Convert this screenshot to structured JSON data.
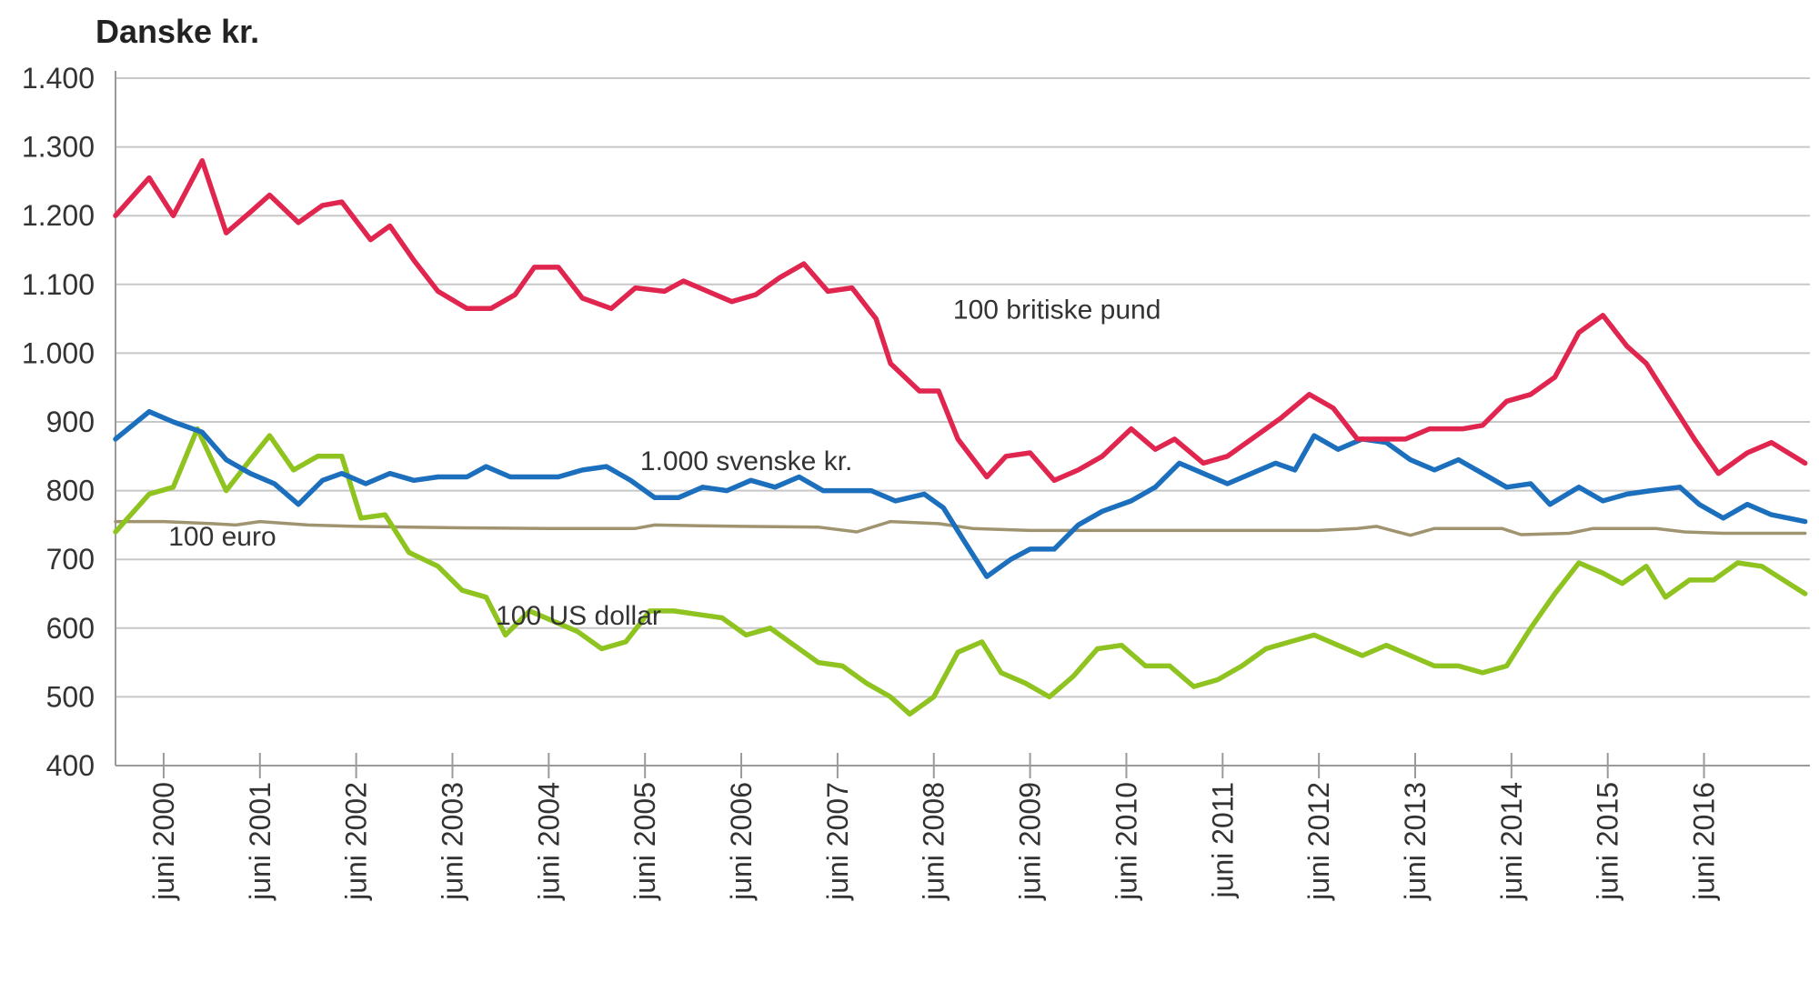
{
  "chart_data": {
    "type": "line",
    "title": "Danske kr.",
    "xlabel": "",
    "ylabel": "",
    "ylim": [
      400,
      1400
    ],
    "yticks": [
      400,
      500,
      600,
      700,
      800,
      900,
      1000,
      1100,
      1200,
      1300,
      1400
    ],
    "ytick_labels": [
      "400",
      "500",
      "600",
      "700",
      "800",
      "900",
      "1.000",
      "1.100",
      "1.200",
      "1.300",
      "1.400"
    ],
    "x_range": [
      1999.5,
      2017.1
    ],
    "x_ticks": [
      2000,
      2001,
      2002,
      2003,
      2004,
      2005,
      2006,
      2007,
      2008,
      2009,
      2010,
      2011,
      2012,
      2013,
      2014,
      2015,
      2016
    ],
    "xtick_labels": [
      "juni 2000",
      "juni 2001",
      "juni 2002",
      "juni 2003",
      "juni 2004",
      "juni 2005",
      "juni 2006",
      "juni 2007",
      "juni 2008",
      "juni 2009",
      "juni 2010",
      "juni 2011",
      "juni 2012",
      "juni 2013",
      "juni 2014",
      "juni 2015",
      "juni 2016"
    ],
    "grid": true,
    "series": [
      {
        "name": "100 britiske pund",
        "color": "#e0254f",
        "label_anchor": [
          2008.2,
          1050
        ],
        "points": [
          [
            1999.5,
            1200
          ],
          [
            1999.85,
            1255
          ],
          [
            2000.1,
            1200
          ],
          [
            2000.4,
            1280
          ],
          [
            2000.65,
            1175
          ],
          [
            2000.9,
            1205
          ],
          [
            2001.1,
            1230
          ],
          [
            2001.4,
            1190
          ],
          [
            2001.65,
            1215
          ],
          [
            2001.85,
            1220
          ],
          [
            2002.15,
            1165
          ],
          [
            2002.35,
            1185
          ],
          [
            2002.6,
            1135
          ],
          [
            2002.85,
            1090
          ],
          [
            2003.15,
            1065
          ],
          [
            2003.4,
            1065
          ],
          [
            2003.65,
            1085
          ],
          [
            2003.85,
            1125
          ],
          [
            2004.1,
            1125
          ],
          [
            2004.35,
            1080
          ],
          [
            2004.65,
            1065
          ],
          [
            2004.9,
            1095
          ],
          [
            2005.2,
            1090
          ],
          [
            2005.4,
            1105
          ],
          [
            2005.65,
            1090
          ],
          [
            2005.9,
            1075
          ],
          [
            2006.15,
            1085
          ],
          [
            2006.4,
            1110
          ],
          [
            2006.65,
            1130
          ],
          [
            2006.9,
            1090
          ],
          [
            2007.15,
            1095
          ],
          [
            2007.4,
            1050
          ],
          [
            2007.55,
            985
          ],
          [
            2007.85,
            945
          ],
          [
            2008.05,
            945
          ],
          [
            2008.25,
            875
          ],
          [
            2008.55,
            820
          ],
          [
            2008.75,
            850
          ],
          [
            2009.0,
            855
          ],
          [
            2009.25,
            815
          ],
          [
            2009.5,
            830
          ],
          [
            2009.75,
            850
          ],
          [
            2010.05,
            890
          ],
          [
            2010.3,
            860
          ],
          [
            2010.5,
            875
          ],
          [
            2010.8,
            840
          ],
          [
            2011.05,
            850
          ],
          [
            2011.3,
            875
          ],
          [
            2011.6,
            905
          ],
          [
            2011.9,
            940
          ],
          [
            2012.15,
            920
          ],
          [
            2012.4,
            875
          ],
          [
            2012.65,
            875
          ],
          [
            2012.9,
            875
          ],
          [
            2013.15,
            890
          ],
          [
            2013.5,
            890
          ],
          [
            2013.7,
            895
          ],
          [
            2013.95,
            930
          ],
          [
            2014.2,
            940
          ],
          [
            2014.45,
            965
          ],
          [
            2014.7,
            1030
          ],
          [
            2014.95,
            1055
          ],
          [
            2015.2,
            1010
          ],
          [
            2015.4,
            985
          ],
          [
            2015.65,
            930
          ],
          [
            2015.9,
            875
          ],
          [
            2016.15,
            825
          ],
          [
            2016.45,
            855
          ],
          [
            2016.7,
            870
          ],
          [
            2017.05,
            840
          ]
        ]
      },
      {
        "name": "1.000 svenske kr.",
        "color": "#1b6fbd",
        "label_anchor": [
          2004.95,
          830
        ],
        "points": [
          [
            1999.5,
            875
          ],
          [
            1999.85,
            915
          ],
          [
            2000.1,
            900
          ],
          [
            2000.4,
            885
          ],
          [
            2000.65,
            845
          ],
          [
            2000.9,
            825
          ],
          [
            2001.15,
            810
          ],
          [
            2001.4,
            780
          ],
          [
            2001.65,
            815
          ],
          [
            2001.85,
            825
          ],
          [
            2002.1,
            810
          ],
          [
            2002.35,
            825
          ],
          [
            2002.6,
            815
          ],
          [
            2002.85,
            820
          ],
          [
            2003.15,
            820
          ],
          [
            2003.35,
            835
          ],
          [
            2003.6,
            820
          ],
          [
            2003.85,
            820
          ],
          [
            2004.1,
            820
          ],
          [
            2004.35,
            830
          ],
          [
            2004.6,
            835
          ],
          [
            2004.85,
            815
          ],
          [
            2005.1,
            790
          ],
          [
            2005.35,
            790
          ],
          [
            2005.6,
            805
          ],
          [
            2005.85,
            800
          ],
          [
            2006.1,
            815
          ],
          [
            2006.35,
            805
          ],
          [
            2006.6,
            820
          ],
          [
            2006.85,
            800
          ],
          [
            2007.1,
            800
          ],
          [
            2007.35,
            800
          ],
          [
            2007.6,
            785
          ],
          [
            2007.9,
            795
          ],
          [
            2008.1,
            775
          ],
          [
            2008.3,
            730
          ],
          [
            2008.55,
            675
          ],
          [
            2008.8,
            700
          ],
          [
            2009.0,
            715
          ],
          [
            2009.25,
            715
          ],
          [
            2009.5,
            750
          ],
          [
            2009.75,
            770
          ],
          [
            2010.05,
            785
          ],
          [
            2010.3,
            805
          ],
          [
            2010.55,
            840
          ],
          [
            2010.8,
            825
          ],
          [
            2011.05,
            810
          ],
          [
            2011.3,
            825
          ],
          [
            2011.55,
            840
          ],
          [
            2011.75,
            830
          ],
          [
            2011.95,
            880
          ],
          [
            2012.2,
            860
          ],
          [
            2012.45,
            875
          ],
          [
            2012.7,
            870
          ],
          [
            2012.95,
            845
          ],
          [
            2013.2,
            830
          ],
          [
            2013.45,
            845
          ],
          [
            2013.7,
            825
          ],
          [
            2013.95,
            805
          ],
          [
            2014.2,
            810
          ],
          [
            2014.4,
            780
          ],
          [
            2014.7,
            805
          ],
          [
            2014.95,
            785
          ],
          [
            2015.2,
            795
          ],
          [
            2015.45,
            800
          ],
          [
            2015.75,
            805
          ],
          [
            2015.95,
            780
          ],
          [
            2016.2,
            760
          ],
          [
            2016.45,
            780
          ],
          [
            2016.7,
            765
          ],
          [
            2017.05,
            755
          ]
        ]
      },
      {
        "name": "100 euro",
        "color": "#a09370",
        "label_anchor": [
          2000.05,
          720
        ],
        "points": [
          [
            1999.5,
            755
          ],
          [
            2000.0,
            755
          ],
          [
            2000.5,
            752
          ],
          [
            2000.75,
            750
          ],
          [
            2001.0,
            755
          ],
          [
            2001.5,
            750
          ],
          [
            2002.0,
            748
          ],
          [
            2003.0,
            746
          ],
          [
            2004.0,
            745
          ],
          [
            2004.9,
            745
          ],
          [
            2005.1,
            750
          ],
          [
            2006.0,
            748
          ],
          [
            2006.8,
            747
          ],
          [
            2007.2,
            740
          ],
          [
            2007.55,
            755
          ],
          [
            2008.05,
            752
          ],
          [
            2008.4,
            745
          ],
          [
            2009.0,
            742
          ],
          [
            2010.0,
            742
          ],
          [
            2011.0,
            742
          ],
          [
            2012.0,
            742
          ],
          [
            2012.4,
            745
          ],
          [
            2012.6,
            748
          ],
          [
            2012.95,
            735
          ],
          [
            2013.2,
            745
          ],
          [
            2013.9,
            745
          ],
          [
            2014.1,
            736
          ],
          [
            2014.6,
            738
          ],
          [
            2014.85,
            745
          ],
          [
            2015.5,
            745
          ],
          [
            2015.8,
            740
          ],
          [
            2016.2,
            738
          ],
          [
            2017.05,
            738
          ]
        ]
      },
      {
        "name": "100 US dollar",
        "color": "#8fc31f",
        "label_anchor": [
          2003.45,
          605
        ],
        "points": [
          [
            1999.5,
            740
          ],
          [
            1999.85,
            795
          ],
          [
            2000.1,
            805
          ],
          [
            2000.35,
            890
          ],
          [
            2000.65,
            800
          ],
          [
            2000.9,
            845
          ],
          [
            2001.1,
            880
          ],
          [
            2001.35,
            830
          ],
          [
            2001.6,
            850
          ],
          [
            2001.85,
            850
          ],
          [
            2002.05,
            760
          ],
          [
            2002.3,
            765
          ],
          [
            2002.55,
            710
          ],
          [
            2002.85,
            690
          ],
          [
            2003.1,
            655
          ],
          [
            2003.35,
            645
          ],
          [
            2003.55,
            590
          ],
          [
            2003.8,
            625
          ],
          [
            2004.05,
            610
          ],
          [
            2004.3,
            595
          ],
          [
            2004.55,
            570
          ],
          [
            2004.8,
            580
          ],
          [
            2005.05,
            625
          ],
          [
            2005.3,
            625
          ],
          [
            2005.55,
            620
          ],
          [
            2005.8,
            615
          ],
          [
            2006.05,
            590
          ],
          [
            2006.3,
            600
          ],
          [
            2006.55,
            575
          ],
          [
            2006.8,
            550
          ],
          [
            2007.05,
            545
          ],
          [
            2007.3,
            520
          ],
          [
            2007.55,
            500
          ],
          [
            2007.75,
            475
          ],
          [
            2008.0,
            500
          ],
          [
            2008.25,
            565
          ],
          [
            2008.5,
            580
          ],
          [
            2008.7,
            535
          ],
          [
            2008.95,
            520
          ],
          [
            2009.2,
            500
          ],
          [
            2009.45,
            530
          ],
          [
            2009.7,
            570
          ],
          [
            2009.95,
            575
          ],
          [
            2010.2,
            545
          ],
          [
            2010.45,
            545
          ],
          [
            2010.7,
            515
          ],
          [
            2010.95,
            525
          ],
          [
            2011.2,
            545
          ],
          [
            2011.45,
            570
          ],
          [
            2011.7,
            580
          ],
          [
            2011.95,
            590
          ],
          [
            2012.2,
            575
          ],
          [
            2012.45,
            560
          ],
          [
            2012.7,
            575
          ],
          [
            2012.95,
            560
          ],
          [
            2013.2,
            545
          ],
          [
            2013.45,
            545
          ],
          [
            2013.7,
            535
          ],
          [
            2013.95,
            545
          ],
          [
            2014.2,
            600
          ],
          [
            2014.45,
            650
          ],
          [
            2014.7,
            695
          ],
          [
            2014.95,
            680
          ],
          [
            2015.15,
            665
          ],
          [
            2015.4,
            690
          ],
          [
            2015.6,
            645
          ],
          [
            2015.85,
            670
          ],
          [
            2016.1,
            670
          ],
          [
            2016.35,
            695
          ],
          [
            2016.6,
            690
          ],
          [
            2017.05,
            650
          ]
        ]
      }
    ]
  }
}
